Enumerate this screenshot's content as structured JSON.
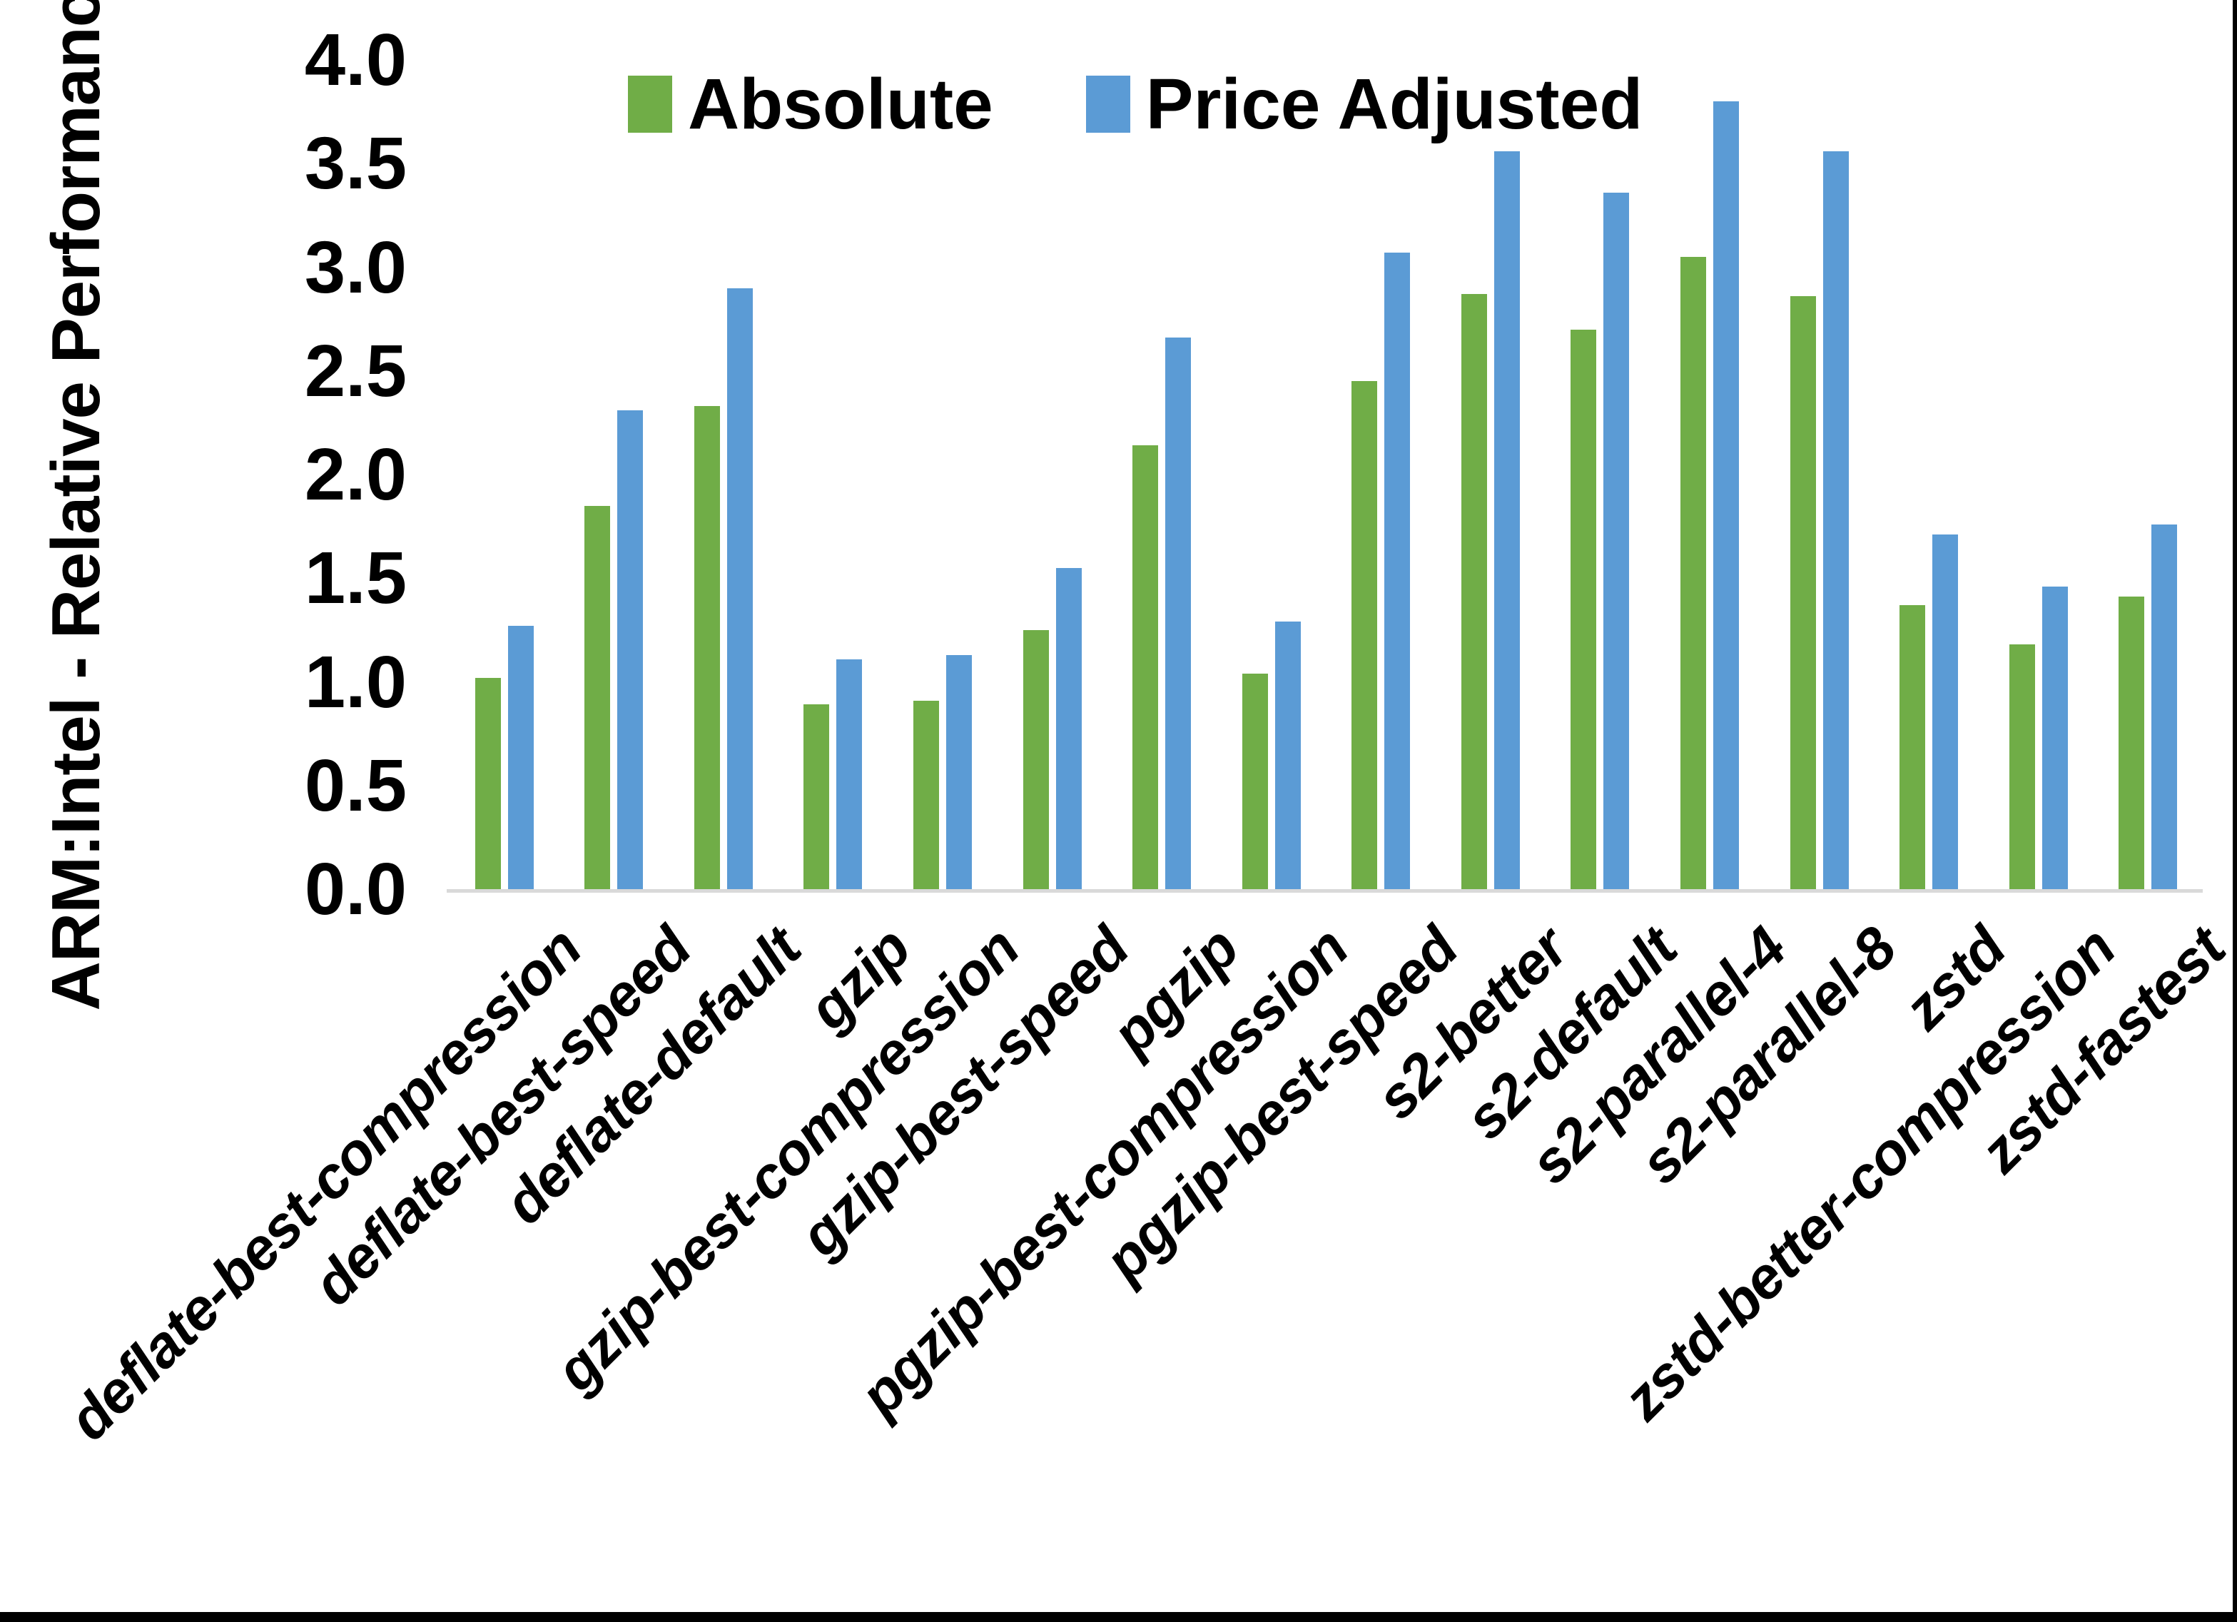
{
  "chart_data": {
    "type": "bar",
    "title": "",
    "xlabel": "",
    "ylabel": "ARM:Intel - Relative Performance",
    "ylim": [
      0.0,
      4.0
    ],
    "y_tick_step": 0.5,
    "y_ticks": [
      "4.0",
      "3.5",
      "3.0",
      "2.5",
      "2.0",
      "1.5",
      "1.0",
      "0.5",
      "0.0"
    ],
    "grid": false,
    "legend_position": "top-center",
    "axis_line_color": "#d9d9d9",
    "text_color": "#000000",
    "background_color": "#ffffff",
    "categories": [
      "deflate-best-compression",
      "deflate-best-speed",
      "deflate-default",
      "gzip",
      "gzip-best-compression",
      "gzip-best-speed",
      "pgzip",
      "pgzip-best-compression",
      "pgzip-best-speed",
      "s2-better",
      "s2-default",
      "s2-parallel-4",
      "s2-parallel-8",
      "zstd",
      "zstd-better-compression",
      "zstd-fastest"
    ],
    "series": [
      {
        "name": "Absolute",
        "color": "#70ad47",
        "values": [
          1.02,
          1.85,
          2.33,
          0.89,
          0.91,
          1.25,
          2.14,
          1.04,
          2.45,
          2.87,
          2.7,
          3.05,
          2.86,
          1.37,
          1.18,
          1.41
        ]
      },
      {
        "name": "Price Adjusted",
        "color": "#5b9bd5",
        "values": [
          1.27,
          2.31,
          2.9,
          1.11,
          1.13,
          1.55,
          2.66,
          1.29,
          3.07,
          3.56,
          3.36,
          3.8,
          3.56,
          1.71,
          1.46,
          1.76
        ]
      }
    ]
  }
}
